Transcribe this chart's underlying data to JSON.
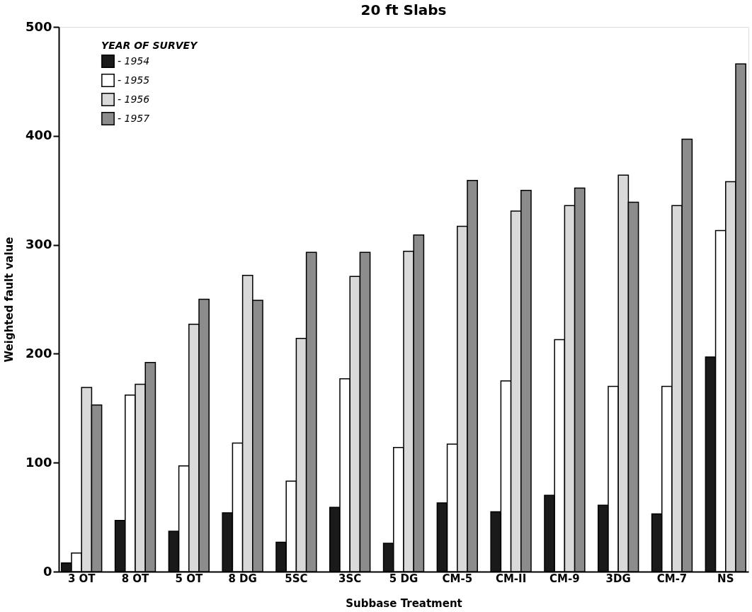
{
  "chart_data": {
    "type": "bar",
    "title": "20 ft Slabs",
    "xlabel": "Subbase Treatment",
    "ylabel": "Weighted fault value",
    "legend_title": "YEAR OF SURVEY",
    "categories": [
      "3 OT",
      "8 OT",
      "5 OT",
      "8 DG",
      "5SC",
      "3SC",
      "5 DG",
      "CM-5",
      "CM-II",
      "CM-9",
      "3DG",
      "CM-7",
      "NS"
    ],
    "series": [
      {
        "name": "- 1954",
        "color": "#1a1a1a",
        "values": [
          8,
          47,
          37,
          54,
          27,
          59,
          26,
          63,
          55,
          70,
          61,
          53,
          197
        ]
      },
      {
        "name": "- 1955",
        "color": "#ffffff",
        "values": [
          17,
          162,
          97,
          118,
          83,
          177,
          114,
          117,
          175,
          213,
          170,
          170,
          313
        ]
      },
      {
        "name": "- 1956",
        "color": "#d9d9d9",
        "values": [
          169,
          172,
          227,
          272,
          214,
          271,
          294,
          317,
          331,
          336,
          364,
          336,
          358
        ]
      },
      {
        "name": "- 1957",
        "color": "#8c8c8c",
        "values": [
          153,
          192,
          250,
          249,
          293,
          293,
          309,
          359,
          350,
          352,
          339,
          397,
          466
        ]
      }
    ],
    "ylim": [
      0,
      500
    ],
    "yticks": [
      0,
      100,
      200,
      300,
      400,
      500
    ],
    "grid": false,
    "legend": "top left"
  }
}
